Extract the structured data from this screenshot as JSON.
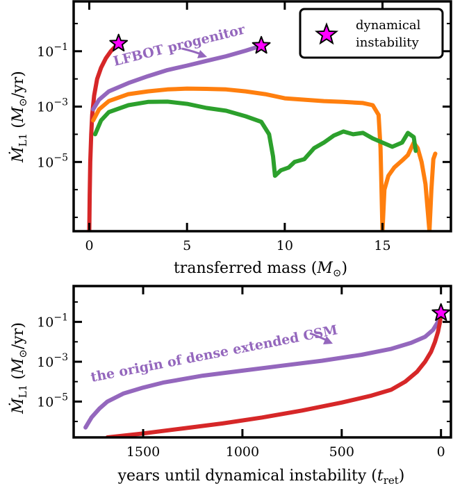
{
  "chart_data": [
    {
      "type": "line",
      "xlabel": "transferred mass (M⊙)",
      "ylabel": "ṀL1 (M⊙/yr)",
      "xlim": [
        -0.8,
        18.5
      ],
      "ylim_log10": [
        -7.5,
        0.8
      ],
      "y_scale": "log",
      "x_ticks": [
        0,
        5,
        10,
        15
      ],
      "y_ticks": [
        {
          "base": "10",
          "exp": "−1",
          "log10": -1
        },
        {
          "base": "10",
          "exp": "−3",
          "log10": -3
        },
        {
          "base": "10",
          "exp": "−5",
          "log10": -5
        }
      ],
      "legend": {
        "label_line1": "dynamical",
        "label_line2": "instability",
        "marker": "star",
        "color": "#ff00ff",
        "position": "top-right"
      },
      "annotation": "LFBOT progenitor",
      "series": [
        {
          "color": "#d62728",
          "log10_points": [
            [
              0.0,
              -7.5
            ],
            [
              0.02,
              -6.2
            ],
            [
              0.05,
              -5.0
            ],
            [
              0.1,
              -4.0
            ],
            [
              0.15,
              -3.3
            ],
            [
              0.25,
              -2.6
            ],
            [
              0.4,
              -2.0
            ],
            [
              0.6,
              -1.6
            ],
            [
              0.85,
              -1.25
            ],
            [
              1.1,
              -1.0
            ],
            [
              1.35,
              -0.82
            ],
            [
              1.5,
              -0.72
            ]
          ]
        },
        {
          "color": "#9467bd",
          "log10_points": [
            [
              0.2,
              -3.1
            ],
            [
              0.5,
              -2.75
            ],
            [
              1.0,
              -2.45
            ],
            [
              2.0,
              -2.15
            ],
            [
              3.0,
              -1.9
            ],
            [
              4.0,
              -1.68
            ],
            [
              5.0,
              -1.52
            ],
            [
              6.0,
              -1.35
            ],
            [
              7.0,
              -1.18
            ],
            [
              8.0,
              -0.98
            ],
            [
              8.8,
              -0.8
            ]
          ]
        },
        {
          "color": "#ff7f0e",
          "log10_points": [
            [
              0.2,
              -3.5
            ],
            [
              0.5,
              -3.1
            ],
            [
              1.0,
              -2.8
            ],
            [
              2.0,
              -2.55
            ],
            [
              3.0,
              -2.45
            ],
            [
              4.0,
              -2.38
            ],
            [
              5.0,
              -2.35
            ],
            [
              6.0,
              -2.36
            ],
            [
              7.0,
              -2.38
            ],
            [
              8.0,
              -2.45
            ],
            [
              9.0,
              -2.55
            ],
            [
              10.0,
              -2.7
            ],
            [
              11.0,
              -2.75
            ],
            [
              12.0,
              -2.8
            ],
            [
              13.0,
              -2.83
            ],
            [
              14.0,
              -2.87
            ],
            [
              14.5,
              -2.95
            ],
            [
              14.8,
              -3.3
            ],
            [
              14.9,
              -4.5
            ],
            [
              15.0,
              -7.5
            ],
            [
              15.1,
              -6.0
            ],
            [
              15.3,
              -5.5
            ],
            [
              15.6,
              -5.2
            ],
            [
              16.0,
              -4.95
            ],
            [
              16.3,
              -4.75
            ],
            [
              16.6,
              -4.3
            ],
            [
              16.8,
              -4.5
            ],
            [
              17.0,
              -5.0
            ],
            [
              17.2,
              -5.8
            ],
            [
              17.4,
              -7.5
            ],
            [
              17.5,
              -6.0
            ],
            [
              17.6,
              -4.9
            ],
            [
              17.7,
              -4.7
            ]
          ]
        },
        {
          "color": "#2ca02c",
          "log10_points": [
            [
              0.3,
              -4.0
            ],
            [
              0.6,
              -3.5
            ],
            [
              1.0,
              -3.2
            ],
            [
              2.0,
              -2.95
            ],
            [
              3.0,
              -2.83
            ],
            [
              4.0,
              -2.82
            ],
            [
              5.0,
              -2.9
            ],
            [
              6.0,
              -3.05
            ],
            [
              7.0,
              -3.15
            ],
            [
              8.0,
              -3.35
            ],
            [
              8.8,
              -3.55
            ],
            [
              9.2,
              -4.0
            ],
            [
              9.4,
              -4.8
            ],
            [
              9.5,
              -5.5
            ],
            [
              9.8,
              -5.3
            ],
            [
              10.2,
              -5.2
            ],
            [
              10.5,
              -5.0
            ],
            [
              11.0,
              -4.9
            ],
            [
              11.5,
              -4.5
            ],
            [
              12.0,
              -4.3
            ],
            [
              12.5,
              -4.05
            ],
            [
              13.0,
              -3.9
            ],
            [
              13.5,
              -4.0
            ],
            [
              14.0,
              -3.95
            ],
            [
              14.5,
              -4.15
            ],
            [
              15.0,
              -4.3
            ],
            [
              15.5,
              -4.45
            ],
            [
              16.0,
              -4.3
            ],
            [
              16.3,
              -3.95
            ],
            [
              16.6,
              -4.1
            ],
            [
              16.7,
              -4.6
            ]
          ]
        }
      ],
      "stars": [
        [
          1.5,
          -0.72
        ],
        [
          8.8,
          -0.8
        ]
      ]
    },
    {
      "type": "line",
      "xlabel": "years until dynamical instability (t_ret)",
      "xlabel_main": "years until dynamical instability (",
      "xlabel_sub": "ret",
      "ylabel": "ṀL1 (M⊙/yr)",
      "xlim": [
        1850,
        -50
      ],
      "ylim_log10": [
        -6.8,
        0.8
      ],
      "y_scale": "log",
      "x_ticks": [
        1500,
        1000,
        500,
        0
      ],
      "y_ticks": [
        {
          "base": "10",
          "exp": "−1",
          "log10": -1
        },
        {
          "base": "10",
          "exp": "−3",
          "log10": -3
        },
        {
          "base": "10",
          "exp": "−5",
          "log10": -5
        }
      ],
      "annotation": "the origin of dense extended CSM",
      "series": [
        {
          "color": "#9467bd",
          "log10_points": [
            [
              1790,
              -6.3
            ],
            [
              1760,
              -5.8
            ],
            [
              1720,
              -5.35
            ],
            [
              1680,
              -5.0
            ],
            [
              1600,
              -4.6
            ],
            [
              1500,
              -4.3
            ],
            [
              1400,
              -4.05
            ],
            [
              1200,
              -3.7
            ],
            [
              1000,
              -3.45
            ],
            [
              800,
              -3.2
            ],
            [
              600,
              -2.95
            ],
            [
              400,
              -2.65
            ],
            [
              250,
              -2.35
            ],
            [
              150,
              -2.05
            ],
            [
              80,
              -1.75
            ],
            [
              40,
              -1.4
            ],
            [
              15,
              -1.0
            ],
            [
              0,
              -0.55
            ]
          ]
        },
        {
          "color": "#d62728",
          "log10_points": [
            [
              1680,
              -6.8
            ],
            [
              1500,
              -6.6
            ],
            [
              1300,
              -6.35
            ],
            [
              1100,
              -6.1
            ],
            [
              900,
              -5.8
            ],
            [
              700,
              -5.45
            ],
            [
              500,
              -5.05
            ],
            [
              350,
              -4.7
            ],
            [
              250,
              -4.4
            ],
            [
              180,
              -4.0
            ],
            [
              120,
              -3.5
            ],
            [
              80,
              -3.0
            ],
            [
              50,
              -2.5
            ],
            [
              30,
              -2.0
            ],
            [
              15,
              -1.5
            ],
            [
              5,
              -1.0
            ],
            [
              0,
              -0.55
            ]
          ]
        }
      ],
      "stars": [
        [
          0,
          -0.55
        ]
      ]
    }
  ]
}
